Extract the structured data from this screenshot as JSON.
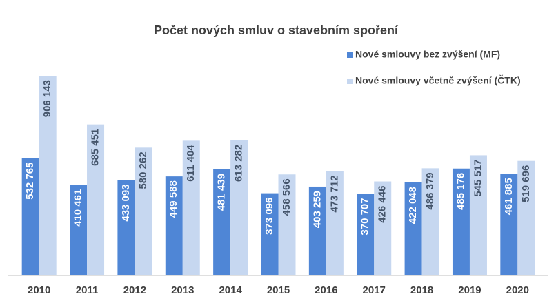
{
  "chart_data": {
    "type": "bar",
    "title": "Počet nových smluv o stavebním spoření",
    "categories": [
      "2010",
      "2011",
      "2012",
      "2013",
      "2014",
      "2015",
      "2016",
      "2017",
      "2018",
      "2019",
      "2020"
    ],
    "series": [
      {
        "name": "Nové smlouvy bez zvýšení (MF)",
        "color": "#4f86d6",
        "values": [
          532765,
          410461,
          433093,
          449588,
          481439,
          373096,
          403259,
          370707,
          422048,
          485176,
          461885
        ],
        "value_labels": [
          "532 765",
          "410 461",
          "433 093",
          "449 588",
          "481 439",
          "373 096",
          "403 259",
          "370 707",
          "422 048",
          "485 176",
          "461 885"
        ]
      },
      {
        "name": "Nové smlouvy včetně zvýšení (ČTK)",
        "color": "#c6d7f0",
        "values": [
          906143,
          685451,
          580262,
          611404,
          613282,
          458566,
          473712,
          426446,
          486379,
          545517,
          519696
        ],
        "value_labels": [
          "906 143",
          "685 451",
          "580 262",
          "611 404",
          "613 282",
          "458 566",
          "473 712",
          "426 446",
          "486 379",
          "545 517",
          "519 696"
        ]
      }
    ],
    "ylim": [
      0,
      1000000
    ],
    "legend": "top-right"
  }
}
